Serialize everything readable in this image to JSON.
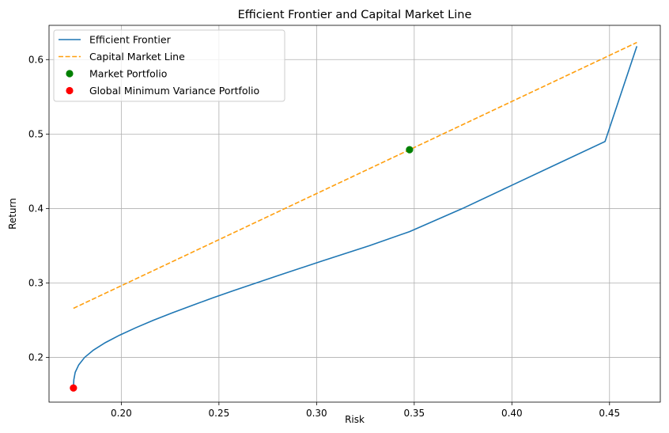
{
  "chart_data": {
    "type": "line",
    "title": "Efficient Frontier and Capital Market Line",
    "xlabel": "Risk",
    "ylabel": "Return",
    "xlim": [
      0.163,
      0.476
    ],
    "ylim": [
      0.14,
      0.646
    ],
    "xticks": [
      0.2,
      0.25,
      0.3,
      0.35,
      0.4,
      0.45
    ],
    "xtick_labels": [
      "0.20",
      "0.25",
      "0.30",
      "0.35",
      "0.40",
      "0.45"
    ],
    "yticks": [
      0.2,
      0.3,
      0.4,
      0.5,
      0.6
    ],
    "ytick_labels": [
      "0.2",
      "0.3",
      "0.4",
      "0.5",
      "0.6"
    ],
    "grid": true,
    "legend_position": "top-left",
    "series": [
      {
        "name": "Efficient Frontier",
        "kind": "line",
        "style": "solid",
        "color": "#1f77b4",
        "x": [
          0.1755,
          0.1757,
          0.1764,
          0.1782,
          0.1812,
          0.1858,
          0.1919,
          0.1992,
          0.2075,
          0.2165,
          0.2262,
          0.2364,
          0.2469,
          0.2578,
          0.2803,
          0.3034,
          0.3269,
          0.3476,
          0.3747,
          0.399,
          0.4233,
          0.4477,
          0.464
        ],
        "y": [
          0.159,
          0.17,
          0.18,
          0.19,
          0.2,
          0.21,
          0.22,
          0.23,
          0.24,
          0.25,
          0.26,
          0.27,
          0.28,
          0.29,
          0.31,
          0.33,
          0.35,
          0.369,
          0.4,
          0.43,
          0.46,
          0.49,
          0.618
        ]
      },
      {
        "name": "Capital Market Line",
        "kind": "line",
        "style": "dashed",
        "color": "#ff9f0e",
        "x": [
          0.1755,
          0.464
        ],
        "y": [
          0.266,
          0.623
        ]
      },
      {
        "name": "Market Portfolio",
        "kind": "point",
        "color": "#008000",
        "x": [
          0.3476
        ],
        "y": [
          0.479
        ]
      },
      {
        "name": "Global Minimum Variance Portfolio",
        "kind": "point",
        "color": "#ff0000",
        "x": [
          0.1755
        ],
        "y": [
          0.159
        ]
      }
    ]
  }
}
